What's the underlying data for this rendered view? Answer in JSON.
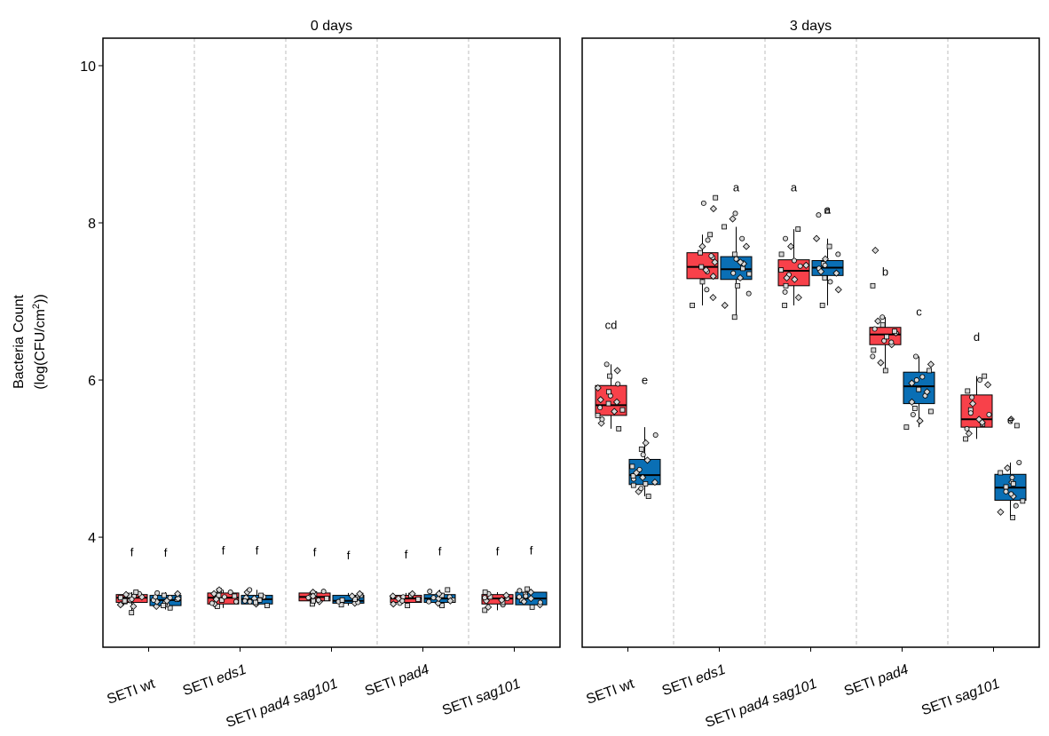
{
  "chart_data": {
    "type": "box",
    "ylabel_line1": "Bacteria Count",
    "ylabel_line2_prefix": "(log(CFU/cm",
    "ylabel_line2_sup": "2",
    "ylabel_line2_suffix": "))",
    "ylim": [
      2.6,
      10.35
    ],
    "yticks": [
      "4",
      "6",
      "8",
      "10"
    ],
    "ytick_values": [
      4,
      6,
      8,
      10
    ],
    "grid": false,
    "legend": "none",
    "categories": [
      {
        "prefix": "SETI",
        "name": "wt",
        "italic": false
      },
      {
        "prefix": "SETI",
        "name": "eds1",
        "italic": true
      },
      {
        "prefix": "SETI",
        "name": "pad4 sag101",
        "italic": true
      },
      {
        "prefix": "SETI",
        "name": "pad4",
        "italic": true
      },
      {
        "prefix": "SETI",
        "name": "sag101",
        "italic": true
      }
    ],
    "colors": {
      "red": "#f8414a",
      "blue": "#0a6fb5"
    },
    "panels": [
      {
        "title": "0 days",
        "groups": [
          {
            "red": {
              "q1": 3.17,
              "median": 3.23,
              "q3": 3.27,
              "wmin": 3.05,
              "wmax": 3.3,
              "points": [
                3.04,
                3.12,
                3.15,
                3.18,
                3.2,
                3.22,
                3.23,
                3.24,
                3.25,
                3.26,
                3.27,
                3.28,
                3.3,
                3.14,
                3.21,
                3.19
              ],
              "letter": "f",
              "letter_y": 3.76
            },
            "blue": {
              "q1": 3.13,
              "median": 3.2,
              "q3": 3.26,
              "wmin": 3.08,
              "wmax": 3.3,
              "points": [
                3.1,
                3.12,
                3.14,
                3.16,
                3.18,
                3.2,
                3.21,
                3.22,
                3.24,
                3.26,
                3.28,
                3.29,
                3.13,
                3.19,
                3.23
              ],
              "letter": "f",
              "letter_y": 3.75
            }
          },
          {
            "red": {
              "q1": 3.15,
              "median": 3.23,
              "q3": 3.29,
              "wmin": 3.1,
              "wmax": 3.33,
              "points": [
                3.12,
                3.15,
                3.18,
                3.2,
                3.22,
                3.24,
                3.26,
                3.28,
                3.3,
                3.32,
                3.33,
                3.16,
                3.25,
                3.21
              ],
              "letter": "f",
              "letter_y": 3.78
            },
            "blue": {
              "q1": 3.15,
              "median": 3.21,
              "q3": 3.26,
              "wmin": 3.12,
              "wmax": 3.33,
              "points": [
                3.13,
                3.15,
                3.18,
                3.2,
                3.22,
                3.24,
                3.26,
                3.3,
                3.33,
                3.17,
                3.23,
                3.19
              ],
              "letter": "f",
              "letter_y": 3.78
            }
          },
          {
            "red": {
              "q1": 3.19,
              "median": 3.24,
              "q3": 3.29,
              "wmin": 3.14,
              "wmax": 3.32,
              "points": [
                3.15,
                3.18,
                3.2,
                3.22,
                3.24,
                3.26,
                3.28,
                3.3,
                3.31,
                3.19,
                3.25,
                3.23
              ],
              "letter": "f",
              "letter_y": 3.76
            },
            "blue": {
              "q1": 3.16,
              "median": 3.19,
              "q3": 3.26,
              "wmin": 3.13,
              "wmax": 3.29,
              "points": [
                3.14,
                3.16,
                3.18,
                3.2,
                3.22,
                3.24,
                3.26,
                3.28,
                3.17,
                3.21,
                3.25
              ],
              "letter": "f",
              "letter_y": 3.72
            }
          },
          {
            "red": {
              "q1": 3.17,
              "median": 3.22,
              "q3": 3.26,
              "wmin": 3.12,
              "wmax": 3.29,
              "points": [
                3.13,
                3.15,
                3.18,
                3.2,
                3.22,
                3.24,
                3.26,
                3.28,
                3.16,
                3.21,
                3.25,
                3.19
              ],
              "letter": "f",
              "letter_y": 3.73
            },
            "blue": {
              "q1": 3.17,
              "median": 3.22,
              "q3": 3.27,
              "wmin": 3.12,
              "wmax": 3.33,
              "points": [
                3.13,
                3.16,
                3.18,
                3.2,
                3.22,
                3.24,
                3.26,
                3.28,
                3.31,
                3.33,
                3.19,
                3.23
              ],
              "letter": "f",
              "letter_y": 3.77
            }
          },
          {
            "red": {
              "q1": 3.15,
              "median": 3.22,
              "q3": 3.27,
              "wmin": 3.07,
              "wmax": 3.3,
              "points": [
                3.07,
                3.11,
                3.14,
                3.17,
                3.2,
                3.22,
                3.24,
                3.26,
                3.28,
                3.3,
                3.19,
                3.23
              ],
              "letter": "f",
              "letter_y": 3.77
            },
            "blue": {
              "q1": 3.14,
              "median": 3.22,
              "q3": 3.3,
              "wmin": 3.1,
              "wmax": 3.34,
              "points": [
                3.11,
                3.14,
                3.17,
                3.2,
                3.22,
                3.24,
                3.27,
                3.3,
                3.32,
                3.34,
                3.18,
                3.25
              ],
              "letter": "f",
              "letter_y": 3.78
            }
          }
        ]
      },
      {
        "title": "3 days",
        "groups": [
          {
            "red": {
              "q1": 5.55,
              "median": 5.68,
              "q3": 5.93,
              "wmin": 5.38,
              "wmax": 6.2,
              "points": [
                5.38,
                5.45,
                5.5,
                5.55,
                5.6,
                5.65,
                5.7,
                5.75,
                5.8,
                5.85,
                5.9,
                5.95,
                6.05,
                6.12,
                6.2,
                5.62,
                5.72
              ],
              "letter": "cd",
              "letter_y": 6.65
            },
            "blue": {
              "q1": 4.67,
              "median": 4.79,
              "q3": 4.99,
              "wmin": 4.52,
              "wmax": 5.4,
              "points": [
                4.52,
                4.58,
                4.62,
                4.66,
                4.7,
                4.74,
                4.78,
                4.82,
                4.86,
                4.9,
                4.98,
                5.05,
                5.12,
                5.2,
                5.3,
                4.68,
                4.76
              ],
              "letter": "e",
              "letter_y": 5.95
            }
          },
          {
            "red": {
              "q1": 7.29,
              "median": 7.44,
              "q3": 7.62,
              "wmin": 6.95,
              "wmax": 7.85,
              "points": [
                6.95,
                7.05,
                7.15,
                7.25,
                7.32,
                7.38,
                7.44,
                7.5,
                7.56,
                7.62,
                7.7,
                7.78,
                7.85,
                8.18,
                8.25,
                8.32,
                7.4,
                7.58
              ],
              "letter": "",
              "letter_y": 8.4
            },
            "blue": {
              "q1": 7.28,
              "median": 7.41,
              "q3": 7.57,
              "wmin": 6.8,
              "wmax": 7.95,
              "points": [
                6.8,
                6.95,
                7.1,
                7.2,
                7.3,
                7.36,
                7.42,
                7.48,
                7.54,
                7.6,
                7.7,
                7.8,
                7.95,
                8.05,
                8.12,
                7.35,
                7.5
              ],
              "letter": "a",
              "letter_y": 8.4
            }
          },
          {
            "red": {
              "q1": 7.2,
              "median": 7.39,
              "q3": 7.53,
              "wmin": 6.95,
              "wmax": 7.92,
              "points": [
                6.95,
                7.05,
                7.12,
                7.2,
                7.28,
                7.34,
                7.4,
                7.46,
                7.52,
                7.6,
                7.7,
                7.8,
                7.92,
                7.3,
                7.45
              ],
              "letter": "a",
              "letter_y": 8.4
            },
            "blue": {
              "q1": 7.33,
              "median": 7.43,
              "q3": 7.52,
              "wmin": 6.95,
              "wmax": 7.8,
              "points": [
                6.95,
                7.15,
                7.25,
                7.3,
                7.36,
                7.42,
                7.48,
                7.54,
                7.6,
                7.7,
                7.8,
                8.1,
                8.15,
                7.38,
                7.46
              ],
              "letter": "a",
              "letter_y": 8.12
            }
          },
          {
            "red": {
              "q1": 6.45,
              "median": 6.58,
              "q3": 6.67,
              "wmin": 6.12,
              "wmax": 6.8,
              "points": [
                6.12,
                6.22,
                6.3,
                6.38,
                6.45,
                6.5,
                6.55,
                6.6,
                6.65,
                6.7,
                6.75,
                6.8,
                7.2,
                7.65,
                6.48,
                6.62
              ],
              "letter": "b",
              "letter_y": 7.33
            },
            "blue": {
              "q1": 5.7,
              "median": 5.92,
              "q3": 6.1,
              "wmin": 5.4,
              "wmax": 6.3,
              "points": [
                5.4,
                5.48,
                5.56,
                5.64,
                5.72,
                5.8,
                5.88,
                5.96,
                6.04,
                6.12,
                6.2,
                6.3,
                5.6,
                5.85,
                6.0
              ],
              "letter": "c",
              "letter_y": 6.82
            }
          },
          {
            "red": {
              "q1": 5.4,
              "median": 5.5,
              "q3": 5.81,
              "wmin": 5.25,
              "wmax": 6.05,
              "points": [
                5.25,
                5.32,
                5.38,
                5.44,
                5.5,
                5.56,
                5.62,
                5.7,
                5.78,
                5.86,
                5.94,
                6.0,
                6.05,
                5.46,
                5.58
              ],
              "letter": "d",
              "letter_y": 6.5
            },
            "blue": {
              "q1": 4.47,
              "median": 4.63,
              "q3": 4.8,
              "wmin": 4.25,
              "wmax": 4.95,
              "points": [
                4.25,
                4.32,
                4.4,
                4.46,
                4.52,
                4.58,
                4.64,
                4.7,
                4.76,
                4.82,
                4.88,
                4.95,
                5.42,
                5.5,
                4.55,
                4.68
              ],
              "letter": "e",
              "letter_y": 5.44
            }
          }
        ]
      }
    ]
  }
}
